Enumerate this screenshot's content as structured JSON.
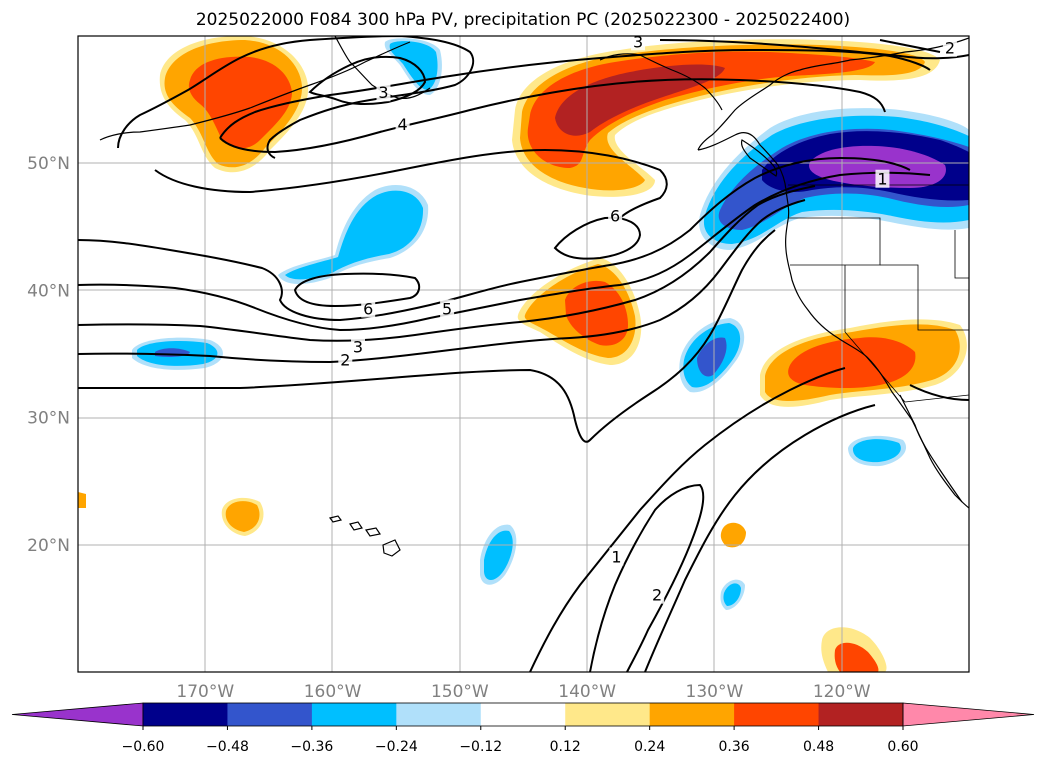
{
  "title": "2025022000 F084 300 hPa PV, precipitation PC (2025022300 - 2025022400)",
  "map": {
    "lon_range": [
      -180,
      -110
    ],
    "lat_range": [
      10,
      60
    ],
    "lon_ticks": [
      {
        "lon": -170,
        "label": "170°W"
      },
      {
        "lon": -160,
        "label": "160°W"
      },
      {
        "lon": -150,
        "label": "150°W"
      },
      {
        "lon": -140,
        "label": "140°W"
      },
      {
        "lon": -130,
        "label": "130°W"
      },
      {
        "lon": -120,
        "label": "120°W"
      }
    ],
    "lat_ticks": [
      {
        "lat": 20,
        "label": "20°N"
      },
      {
        "lat": 30,
        "label": "30°N"
      },
      {
        "lat": 40,
        "label": "40°N"
      },
      {
        "lat": 50,
        "label": "50°N"
      }
    ],
    "grid": true
  },
  "colorbar": {
    "colors": [
      "#9933cc",
      "#00008b",
      "#3355cc",
      "#00bfff",
      "#b0e0fa",
      "#ffffff",
      "#ffe88a",
      "#ffa500",
      "#ff4500",
      "#b22222",
      "#ff88aa"
    ],
    "ticks": [
      "−0.60",
      "−0.48",
      "−0.36",
      "−0.24",
      "−0.12",
      "0.12",
      "0.24",
      "0.36",
      "0.48",
      "0.60"
    ]
  },
  "contour_labels": [
    {
      "text": "3",
      "lon": -156,
      "lat": 55.5
    },
    {
      "text": "4",
      "lon": -154.5,
      "lat": 53.0
    },
    {
      "text": "3",
      "lon": -136,
      "lat": 59.5
    },
    {
      "text": "2",
      "lon": -111.5,
      "lat": 59.0
    },
    {
      "text": "6",
      "lon": -137.8,
      "lat": 45.8
    },
    {
      "text": "6",
      "lon": -157.2,
      "lat": 38.5
    },
    {
      "text": "5",
      "lon": -151.0,
      "lat": 38.5
    },
    {
      "text": "3",
      "lon": -158.0,
      "lat": 35.5
    },
    {
      "text": "2",
      "lon": -159.0,
      "lat": 34.5
    },
    {
      "text": "1",
      "lon": -116.8,
      "lat": 48.7
    },
    {
      "text": "1",
      "lon": -137.7,
      "lat": 19.0
    },
    {
      "text": "2",
      "lon": -134.5,
      "lat": 16.0
    }
  ]
}
